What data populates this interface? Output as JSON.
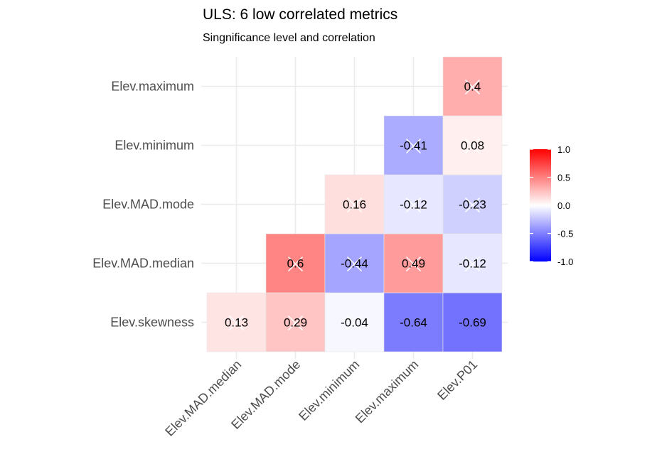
{
  "chart_data": {
    "type": "heatmap",
    "title": "ULS: 6 low correlated metrics",
    "subtitle": "Singnificance level and correlation",
    "x_categories": [
      "Elev.MAD.median",
      "Elev.MAD.mode",
      "Elev.minimum",
      "Elev.maximum",
      "Elev.P01"
    ],
    "y_categories": [
      "Elev.skewness",
      "Elev.MAD.median",
      "Elev.MAD.mode",
      "Elev.minimum",
      "Elev.maximum"
    ],
    "cells": [
      {
        "x": "Elev.MAD.median",
        "y": "Elev.skewness",
        "value": 0.13,
        "label": "0.13",
        "insignificant": true
      },
      {
        "x": "Elev.MAD.mode",
        "y": "Elev.skewness",
        "value": 0.29,
        "label": "0.29",
        "insignificant": true
      },
      {
        "x": "Elev.MAD.mode",
        "y": "Elev.MAD.median",
        "value": 0.6,
        "label": "0.6",
        "insignificant": true
      },
      {
        "x": "Elev.minimum",
        "y": "Elev.skewness",
        "value": -0.04,
        "label": "-0.04",
        "insignificant": true
      },
      {
        "x": "Elev.minimum",
        "y": "Elev.MAD.median",
        "value": -0.44,
        "label": "-0.44",
        "insignificant": true
      },
      {
        "x": "Elev.minimum",
        "y": "Elev.MAD.mode",
        "value": 0.16,
        "label": "0.16",
        "insignificant": true
      },
      {
        "x": "Elev.maximum",
        "y": "Elev.skewness",
        "value": -0.64,
        "label": "-0.64",
        "insignificant": false
      },
      {
        "x": "Elev.maximum",
        "y": "Elev.MAD.median",
        "value": 0.49,
        "label": "0.49",
        "insignificant": true
      },
      {
        "x": "Elev.maximum",
        "y": "Elev.MAD.mode",
        "value": -0.12,
        "label": "-0.12",
        "insignificant": true
      },
      {
        "x": "Elev.maximum",
        "y": "Elev.minimum",
        "value": -0.41,
        "label": "-0.41",
        "insignificant": true
      },
      {
        "x": "Elev.P01",
        "y": "Elev.skewness",
        "value": -0.69,
        "label": "-0.69",
        "insignificant": false
      },
      {
        "x": "Elev.P01",
        "y": "Elev.MAD.median",
        "value": -0.12,
        "label": "-0.12",
        "insignificant": true
      },
      {
        "x": "Elev.P01",
        "y": "Elev.MAD.mode",
        "value": -0.23,
        "label": "-0.23",
        "insignificant": true
      },
      {
        "x": "Elev.P01",
        "y": "Elev.minimum",
        "value": 0.08,
        "label": "0.08",
        "insignificant": true
      },
      {
        "x": "Elev.P01",
        "y": "Elev.maximum",
        "value": 0.4,
        "label": "0.4",
        "insignificant": true
      }
    ],
    "color_scale": {
      "low": "#0000ff",
      "mid": "#ffffff",
      "high": "#ff0000",
      "limits": [
        -1,
        1
      ]
    },
    "legend": {
      "position": "right",
      "ticks": [
        1.0,
        0.5,
        0.0,
        -0.5,
        -1.0
      ],
      "tick_labels": [
        "1.0",
        "0.5",
        "0.0",
        "-0.5",
        "-1.0"
      ]
    },
    "xlabel": "",
    "ylabel": "",
    "grid": true
  }
}
